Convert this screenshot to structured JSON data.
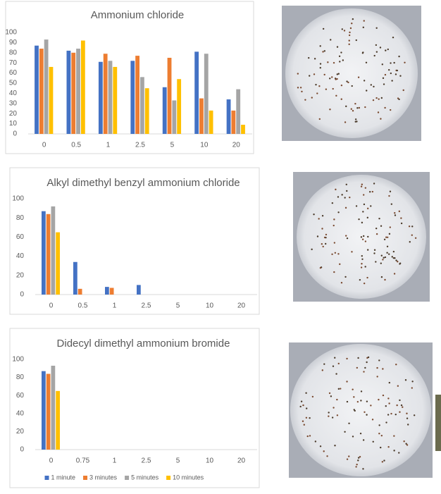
{
  "chart_data": [
    {
      "type": "bar",
      "title": "Ammonium chloride",
      "categories": [
        "0",
        "0.5",
        "1",
        "2.5",
        "5",
        "10",
        "20"
      ],
      "series": [
        {
          "color": "#4472c4",
          "values": [
            87,
            82,
            71,
            72,
            46,
            81,
            34
          ]
        },
        {
          "color": "#ed7d31",
          "values": [
            84,
            80,
            79,
            77,
            75,
            35,
            23
          ]
        },
        {
          "color": "#a5a5a5",
          "values": [
            93,
            84,
            72,
            56,
            33,
            79,
            44
          ]
        },
        {
          "color": "#ffc000",
          "values": [
            66,
            92,
            66,
            45,
            54,
            23,
            9
          ]
        }
      ],
      "ylim": [
        0,
        100
      ],
      "yticks": [
        0,
        10,
        20,
        30,
        40,
        50,
        60,
        70,
        80,
        90,
        100
      ],
      "grid": false
    },
    {
      "type": "bar",
      "title": "Alkyl dimethyl benzyl ammonium chloride",
      "categories": [
        "0",
        "0.5",
        "1",
        "2.5",
        "5",
        "10",
        "20"
      ],
      "series": [
        {
          "color": "#4472c4",
          "values": [
            87,
            34,
            8,
            10,
            0,
            0,
            0
          ]
        },
        {
          "color": "#ed7d31",
          "values": [
            84,
            6,
            7,
            0,
            0,
            0,
            0
          ]
        },
        {
          "color": "#a5a5a5",
          "values": [
            92,
            0,
            0,
            0,
            0,
            0,
            0
          ]
        },
        {
          "color": "#ffc000",
          "values": [
            65,
            0,
            0,
            0,
            0,
            0,
            0
          ]
        }
      ],
      "ylim": [
        0,
        100
      ],
      "yticks": [
        0,
        20,
        40,
        60,
        80,
        100
      ],
      "grid": false
    },
    {
      "type": "bar",
      "title": "Didecyl dimethyl ammonium bromide",
      "categories": [
        "0",
        "0.75",
        "1",
        "2.5",
        "5",
        "10",
        "20"
      ],
      "series": [
        {
          "name": "1 minute",
          "color": "#4472c4",
          "values": [
            87,
            0,
            0,
            0,
            0,
            0,
            0
          ]
        },
        {
          "name": "3 minutes",
          "color": "#ed7d31",
          "values": [
            84,
            0,
            0,
            0,
            0,
            0,
            0
          ]
        },
        {
          "name": "5 minutes",
          "color": "#a5a5a5",
          "values": [
            93,
            0,
            0,
            0,
            0,
            0,
            0
          ]
        },
        {
          "name": "10 minutes",
          "color": "#ffc000",
          "values": [
            65,
            0,
            0,
            0,
            0,
            0,
            0
          ]
        }
      ],
      "ylim": [
        0,
        100
      ],
      "yticks": [
        0,
        20,
        40,
        60,
        80,
        100
      ],
      "grid": false,
      "legend": "bottom"
    }
  ]
}
